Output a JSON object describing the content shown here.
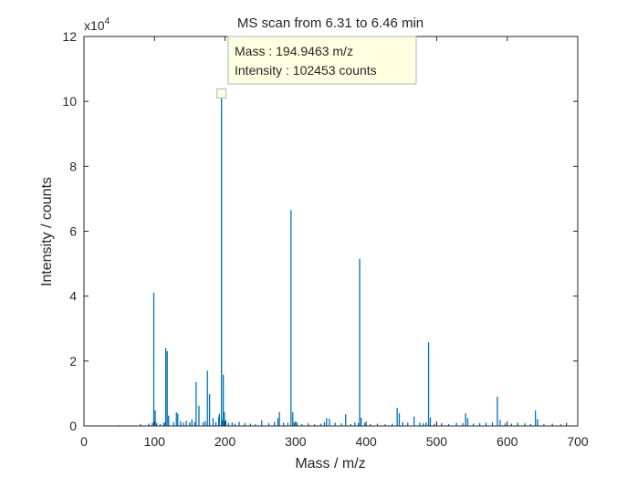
{
  "chart_data": {
    "type": "bar",
    "title": "MS scan from 6.31 to 6.46 min",
    "xlabel": "Mass / m/z",
    "ylabel": "Intensity / counts",
    "xlim": [
      0,
      700
    ],
    "ylim": [
      0,
      120000
    ],
    "y_exponent_label": "x10",
    "y_exponent_power": "4",
    "xticks": [
      0,
      100,
      200,
      300,
      400,
      500,
      600,
      700
    ],
    "xtick_labels": [
      "0",
      "100",
      "200",
      "300",
      "400",
      "500",
      "600",
      "700"
    ],
    "yticks": [
      0,
      20000,
      40000,
      60000,
      80000,
      100000,
      120000
    ],
    "ytick_labels": [
      "0",
      "2",
      "4",
      "6",
      "8",
      "10",
      "12"
    ],
    "grid": false,
    "series_color": "#0072BD",
    "mz": [
      50,
      80,
      92,
      97,
      99,
      101,
      103,
      108,
      113,
      115,
      116,
      118,
      120,
      127,
      131,
      133,
      137,
      141,
      145,
      150,
      153,
      157,
      159,
      163,
      169,
      172,
      175,
      178,
      183,
      187,
      191,
      192,
      194.9463,
      196,
      197.5,
      199,
      201,
      205,
      210,
      214,
      220,
      228,
      236,
      243,
      252,
      262,
      270,
      275,
      277,
      283,
      289,
      293.5,
      296,
      298,
      302,
      309,
      318,
      327,
      336,
      341,
      344,
      348,
      356,
      365,
      371,
      378,
      384,
      389,
      390.8,
      393,
      398,
      406,
      416,
      427,
      437,
      444,
      447,
      452,
      459,
      468,
      476,
      481,
      485,
      488.5,
      491,
      497,
      507,
      517,
      528,
      537,
      541,
      544,
      552,
      561,
      570,
      579,
      586,
      590,
      597,
      606,
      615,
      625,
      633,
      640,
      643,
      652,
      664,
      676,
      684
    ],
    "intensity": [
      200,
      600,
      700,
      1000,
      41000,
      4800,
      900,
      600,
      900,
      1300,
      24000,
      23000,
      3200,
      1200,
      4200,
      3800,
      1500,
      1000,
      1600,
      1100,
      2000,
      1200,
      13500,
      6200,
      1200,
      1500,
      17000,
      9800,
      2400,
      1200,
      2800,
      3800,
      102453,
      1800,
      15800,
      4300,
      1800,
      900,
      1100,
      700,
      1300,
      900,
      700,
      500,
      1700,
      900,
      1300,
      2400,
      4300,
      1000,
      1000,
      66500,
      4200,
      1100,
      1000,
      600,
      800,
      500,
      700,
      1200,
      2400,
      2200,
      1000,
      800,
      3600,
      600,
      1100,
      900,
      51500,
      2500,
      900,
      600,
      700,
      500,
      700,
      5600,
      3900,
      1200,
      1000,
      2900,
      1000,
      800,
      1100,
      25800,
      2600,
      700,
      900,
      600,
      1000,
      900,
      3900,
      2400,
      700,
      900,
      1000,
      1100,
      9000,
      1800,
      800,
      700,
      1000,
      800,
      600,
      4800,
      2100,
      600,
      700,
      500,
      1000
    ]
  },
  "datatip": {
    "mass_line": "Mass : 194.9463 m/z",
    "intensity_line": "Intensity : 102453 counts",
    "mz": 194.9463,
    "intensity": 102453,
    "background": "#FFFFE1",
    "border": "#B5B5B5"
  }
}
